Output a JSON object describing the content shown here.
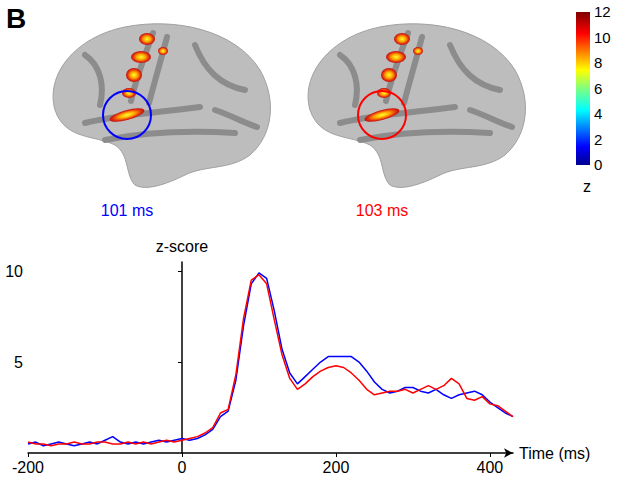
{
  "panel_letter": "B",
  "brain_maps": [
    {
      "label": "101 ms",
      "color": "#0000ff"
    },
    {
      "label": "103 ms",
      "color": "#ff0000"
    }
  ],
  "colorbar": {
    "range": [
      0,
      12
    ],
    "ticks": [
      0,
      2,
      4,
      6,
      8,
      10,
      12
    ],
    "label": "z"
  },
  "chart_data": {
    "type": "line",
    "x": [
      -200,
      -190,
      -180,
      -170,
      -160,
      -150,
      -140,
      -130,
      -120,
      -110,
      -100,
      -90,
      -80,
      -70,
      -60,
      -50,
      -40,
      -30,
      -20,
      -10,
      0,
      10,
      20,
      30,
      40,
      50,
      60,
      70,
      80,
      90,
      100,
      110,
      120,
      130,
      140,
      150,
      160,
      170,
      180,
      190,
      200,
      210,
      220,
      230,
      240,
      250,
      260,
      270,
      280,
      290,
      300,
      310,
      320,
      330,
      340,
      350,
      360,
      370,
      380,
      390,
      400,
      410,
      420,
      430
    ],
    "series": [
      {
        "color": "#0000ff",
        "values": [
          0.5,
          0.6,
          0.4,
          0.5,
          0.6,
          0.5,
          0.4,
          0.5,
          0.6,
          0.5,
          0.7,
          0.9,
          0.6,
          0.5,
          0.6,
          0.5,
          0.6,
          0.7,
          0.6,
          0.7,
          0.8,
          0.7,
          0.8,
          1.0,
          1.3,
          2.0,
          2.3,
          4.0,
          7.0,
          9.3,
          9.9,
          9.6,
          7.8,
          5.7,
          4.4,
          3.8,
          4.2,
          4.6,
          5.0,
          5.3,
          5.3,
          5.3,
          5.3,
          5.0,
          4.5,
          3.9,
          3.5,
          3.3,
          3.4,
          3.6,
          3.6,
          3.4,
          3.3,
          3.5,
          3.2,
          3.0,
          3.2,
          3.3,
          3.4,
          3.2,
          2.8,
          2.5,
          2.2,
          2.0
        ]
      },
      {
        "color": "#ff0000",
        "values": [
          0.6,
          0.5,
          0.5,
          0.4,
          0.5,
          0.5,
          0.6,
          0.5,
          0.5,
          0.6,
          0.6,
          0.5,
          0.5,
          0.6,
          0.5,
          0.6,
          0.5,
          0.6,
          0.7,
          0.6,
          0.7,
          0.8,
          0.9,
          1.1,
          1.4,
          2.2,
          2.4,
          4.3,
          7.4,
          9.5,
          9.8,
          9.3,
          7.3,
          5.4,
          4.1,
          3.5,
          3.8,
          4.2,
          4.5,
          4.7,
          4.8,
          4.7,
          4.4,
          4.0,
          3.5,
          3.2,
          3.3,
          3.4,
          3.4,
          3.5,
          3.3,
          3.5,
          3.7,
          3.5,
          3.7,
          4.1,
          3.8,
          3.0,
          2.9,
          3.1,
          2.7,
          2.6,
          2.3,
          2.0
        ]
      }
    ],
    "xlabel": "Time (ms)",
    "ylabel": "z-score",
    "xlim": [
      -200,
      430
    ],
    "ylim": [
      0,
      10.5
    ],
    "xticks": [
      -200,
      0,
      200,
      400
    ],
    "yticks": [
      5,
      10
    ],
    "grid": false
  }
}
